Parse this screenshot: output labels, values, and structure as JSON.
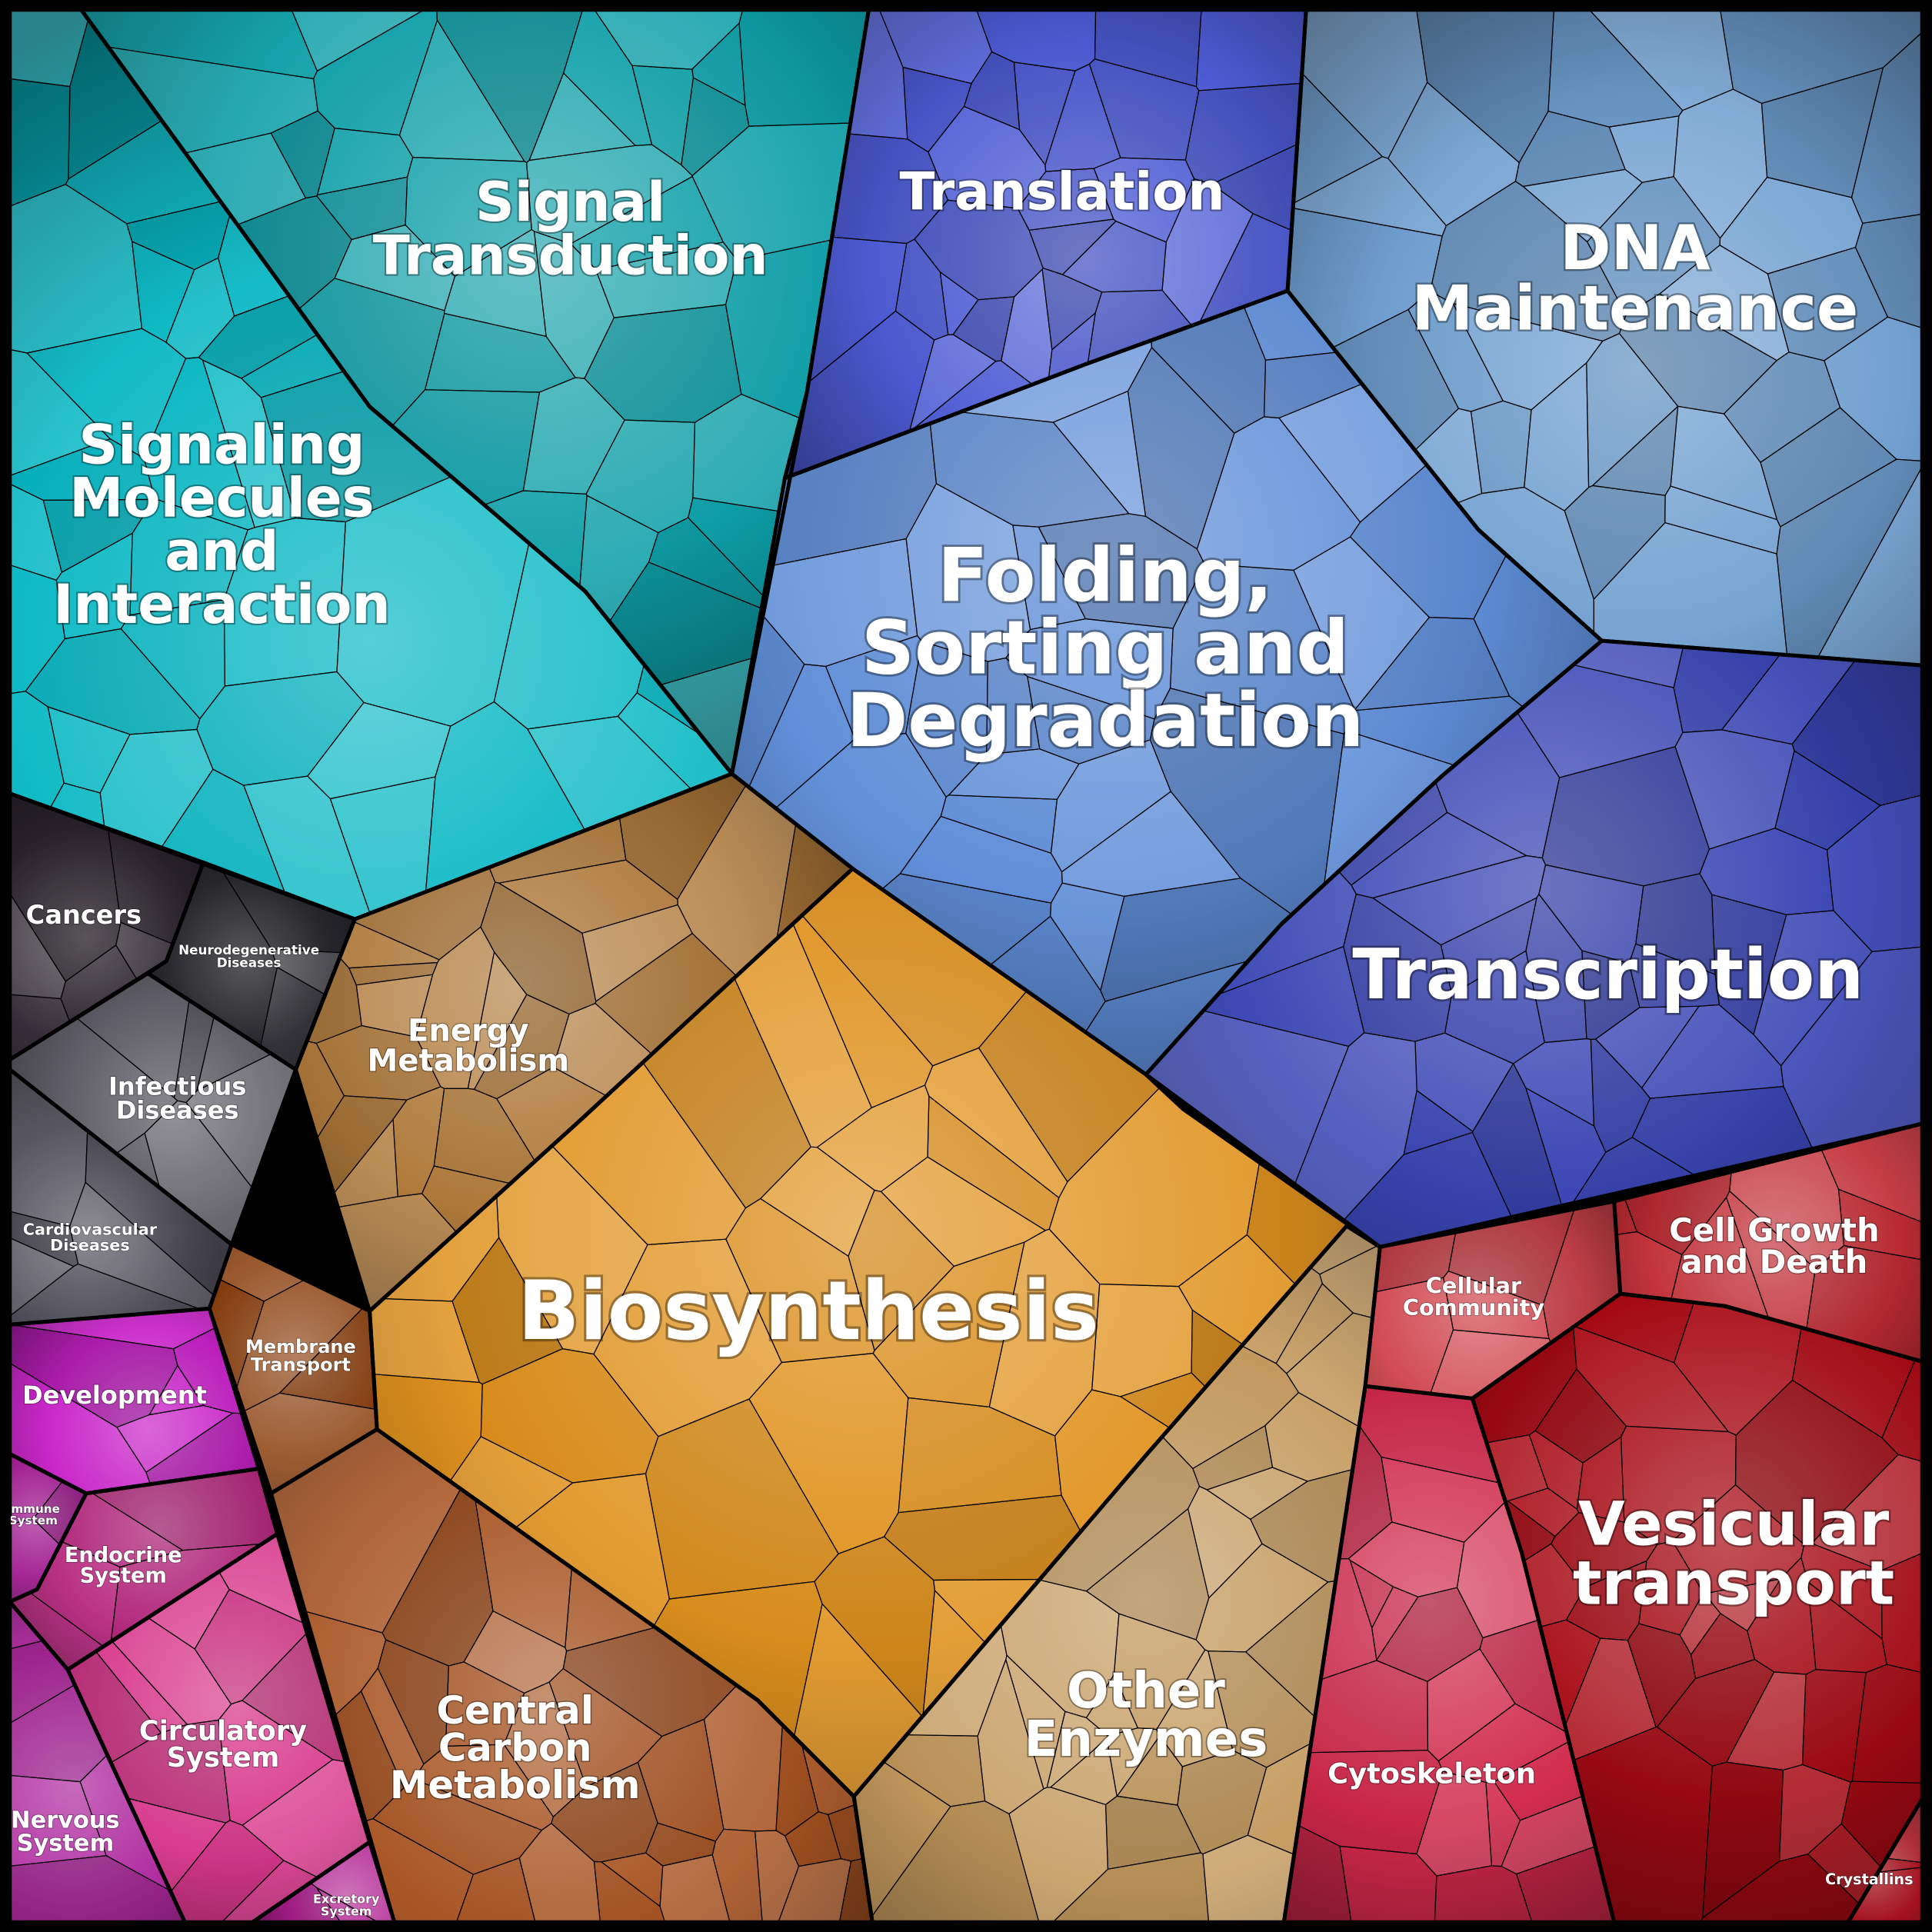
{
  "diagram": {
    "type": "voronoi-treemap",
    "regions": [
      {
        "id": "signal-transduction",
        "lines": [
          "Signal",
          "Transduction"
        ],
        "color": "#0e9fa8"
      },
      {
        "id": "signaling-molecules",
        "lines": [
          "Signaling",
          "Molecules",
          "and",
          "Interaction"
        ],
        "color": "#08b8c4"
      },
      {
        "id": "translation",
        "lines": [
          "Translation"
        ],
        "color": "#4d5bd4"
      },
      {
        "id": "dna-maintenance",
        "lines": [
          "DNA",
          "Maintenance"
        ],
        "color": "#6f9fd0"
      },
      {
        "id": "folding-sorting",
        "lines": [
          "Folding,",
          "Sorting and",
          "Degradation"
        ],
        "color": "#5f8ed8"
      },
      {
        "id": "transcription",
        "lines": [
          "Transcription"
        ],
        "color": "#3a45b4"
      },
      {
        "id": "cancers",
        "lines": [
          "Cancers"
        ],
        "color": "#2e2630"
      },
      {
        "id": "neurodegenerative",
        "lines": [
          "Neurodegenerative",
          "Diseases"
        ],
        "color": "#2c2c32"
      },
      {
        "id": "infectious",
        "lines": [
          "Infectious",
          "Diseases"
        ],
        "color": "#5a5860"
      },
      {
        "id": "cardiovascular",
        "lines": [
          "Cardiovascular",
          "Diseases"
        ],
        "color": "#46444e"
      },
      {
        "id": "energy-metabolism",
        "lines": [
          "Energy",
          "Metabolism"
        ],
        "color": "#b07a3a"
      },
      {
        "id": "membrane-transport",
        "lines": [
          "Membrane",
          "Transport"
        ],
        "color": "#8a3e0c"
      },
      {
        "id": "biosynthesis",
        "lines": [
          "Biosynthesis"
        ],
        "color": "#e0921e"
      },
      {
        "id": "central-carbon",
        "lines": [
          "Central",
          "Carbon",
          "Metabolism"
        ],
        "color": "#a85422"
      },
      {
        "id": "other-enzymes",
        "lines": [
          "Other",
          "Enzymes"
        ],
        "color": "#c49a5e"
      },
      {
        "id": "cellular-community",
        "lines": [
          "Cellular",
          "Community"
        ],
        "color": "#d0444c"
      },
      {
        "id": "cell-growth",
        "lines": [
          "Cell Growth",
          "and Death"
        ],
        "color": "#c02c34"
      },
      {
        "id": "vesicular-transport",
        "lines": [
          "Vesicular",
          "transport"
        ],
        "color": "#a80a14"
      },
      {
        "id": "cytoskeleton",
        "lines": [
          "Cytoskeleton"
        ],
        "color": "#d0284a"
      },
      {
        "id": "crystallins",
        "lines": [
          "Crystallins"
        ],
        "color": "#a00a16"
      },
      {
        "id": "development",
        "lines": [
          "Development"
        ],
        "color": "#c822c8"
      },
      {
        "id": "immune-system",
        "lines": [
          "Immune",
          "System"
        ],
        "color": "#a01a90"
      },
      {
        "id": "endocrine-system",
        "lines": [
          "Endocrine",
          "System"
        ],
        "color": "#b82a80"
      },
      {
        "id": "circulatory-system",
        "lines": [
          "Circulatory",
          "System"
        ],
        "color": "#d8388c"
      },
      {
        "id": "nervous-system",
        "lines": [
          "Nervous",
          "System"
        ],
        "color": "#b02aa0"
      },
      {
        "id": "excretory-system",
        "lines": [
          "Excretory",
          "System"
        ],
        "color": "#b01e90"
      }
    ]
  }
}
